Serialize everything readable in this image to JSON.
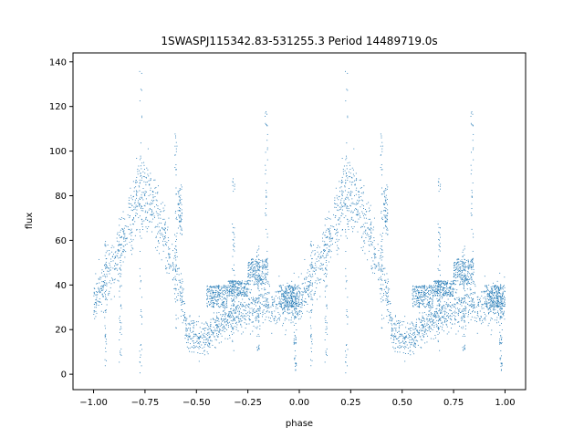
{
  "chart_data": {
    "type": "scatter",
    "title": "1SWASPJ115342.83-531255.3 Period 14489719.0s",
    "xlabel": "phase",
    "ylabel": "flux",
    "xlim": [
      -1.1,
      1.1
    ],
    "ylim": [
      -6.9,
      144
    ],
    "x_ticks": [
      -1.0,
      -0.75,
      -0.5,
      -0.25,
      0.0,
      0.25,
      0.5,
      0.75,
      1.0
    ],
    "x_tick_labels": [
      "−1.00",
      "−0.75",
      "−0.50",
      "−0.25",
      "0.00",
      "0.25",
      "0.50",
      "0.75",
      "1.00"
    ],
    "y_ticks": [
      0,
      20,
      40,
      60,
      80,
      100,
      120,
      140
    ],
    "y_tick_labels": [
      "0",
      "20",
      "40",
      "60",
      "80",
      "100",
      "120",
      "140"
    ],
    "grid": false,
    "legend": "none",
    "point_color": "#1f77b4",
    "series": [
      {
        "envelope": [
          [
            0.0,
            32
          ],
          [
            0.05,
            40
          ],
          [
            0.1,
            50
          ],
          [
            0.15,
            62
          ],
          [
            0.2,
            75
          ],
          [
            0.23,
            83
          ],
          [
            0.26,
            80
          ],
          [
            0.3,
            73
          ],
          [
            0.35,
            60
          ],
          [
            0.4,
            45
          ],
          [
            0.42,
            40
          ],
          [
            0.45,
            20
          ],
          [
            0.5,
            16
          ],
          [
            0.55,
            16
          ],
          [
            0.6,
            22
          ],
          [
            0.65,
            25
          ],
          [
            0.7,
            27
          ],
          [
            0.75,
            29
          ],
          [
            0.8,
            30
          ],
          [
            0.85,
            31
          ],
          [
            0.9,
            30
          ],
          [
            0.95,
            31
          ],
          [
            1.0,
            32
          ]
        ],
        "bands": [
          [
            0.55,
            0.65,
            30,
            40
          ],
          [
            0.65,
            0.75,
            35,
            42
          ],
          [
            0.75,
            0.85,
            40,
            52
          ],
          [
            0.9,
            1.0,
            30,
            40
          ]
        ],
        "clusters": [
          [
            0.41,
            0.43,
            62,
            85
          ]
        ],
        "spikes": [
          [
            0.23,
            0,
            137
          ],
          [
            0.84,
            30,
            118
          ],
          [
            0.68,
            10,
            88
          ],
          [
            0.13,
            5,
            70
          ],
          [
            0.06,
            2,
            60
          ],
          [
            0.98,
            0,
            35
          ],
          [
            0.8,
            10,
            60
          ],
          [
            0.4,
            20,
            110
          ]
        ]
      }
    ]
  }
}
